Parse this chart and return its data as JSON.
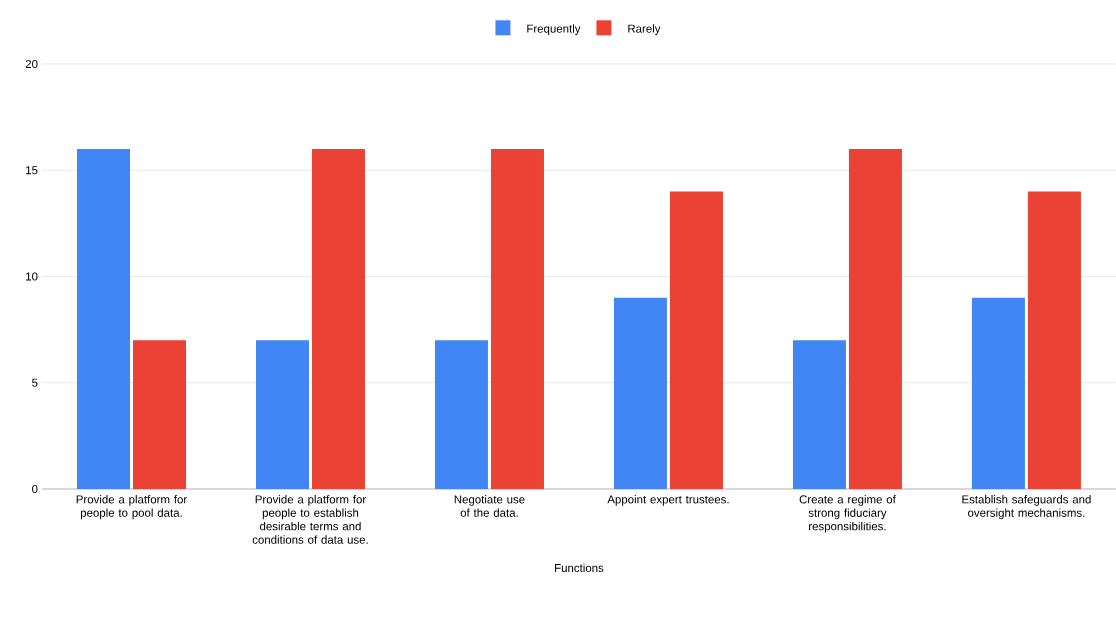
{
  "chart_data": {
    "type": "bar",
    "xlabel": "Functions",
    "categories": [
      "Provide a platform for people to pool data.",
      "Provide a platform for people to establish desirable terms and conditions of data use.",
      "Negotiate use of the data.",
      "Appoint expert trustees.",
      "Create a regime of strong fiduciary responsibilities.",
      "Establish safeguards and oversight mechanisms."
    ],
    "series": [
      {
        "name": "Frequently",
        "color": "#4285f4",
        "values": [
          16,
          7,
          7,
          9,
          7,
          9
        ]
      },
      {
        "name": "Rarely",
        "color": "#ea4335",
        "values": [
          7,
          16,
          16,
          14,
          16,
          14
        ]
      }
    ],
    "ylim": [
      0,
      20
    ],
    "yticks": [
      0,
      5,
      10,
      15,
      20
    ],
    "grid": "y",
    "legend": "top"
  }
}
